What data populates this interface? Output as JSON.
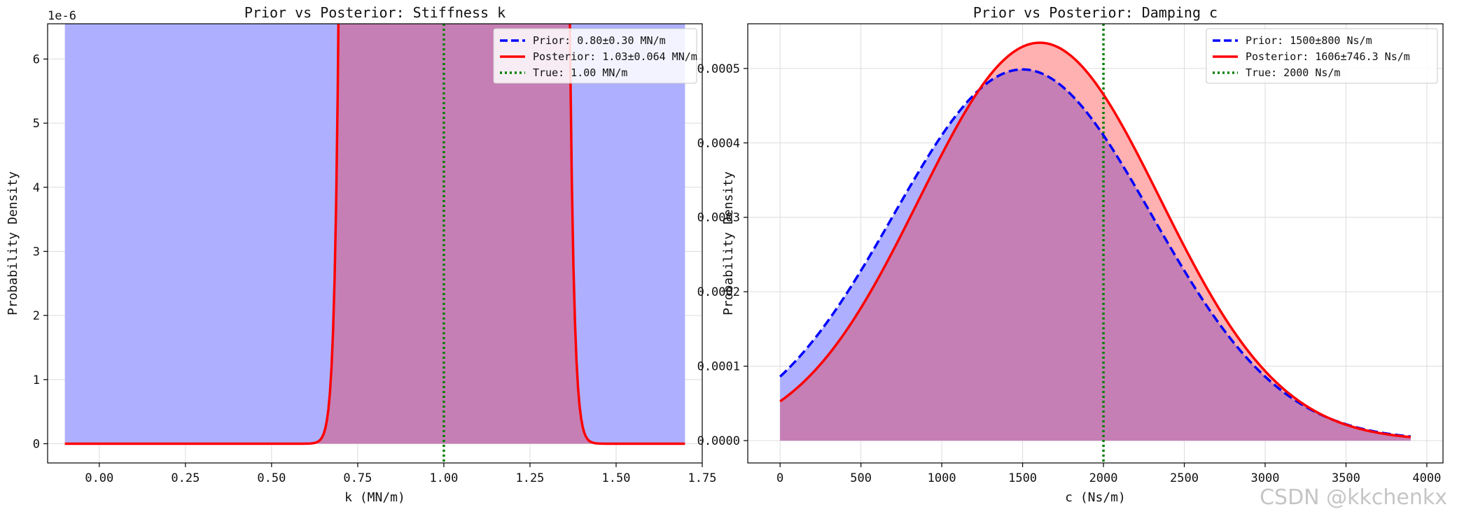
{
  "watermark": "CSDN @kkchenkx",
  "colors": {
    "prior": "#0000ff",
    "posterior": "#ff0000",
    "true_line": "#008000",
    "prior_fill": "#aeb0ff",
    "posterior_fill": "#ffb0b0",
    "overlap_fill": "#c57fb4",
    "grid": "#dcdcdc"
  },
  "chart_data": [
    {
      "type": "line",
      "title": "Prior vs Posterior: Stiffness k",
      "xlabel": "k (MN/m)",
      "ylabel": "Probability Density",
      "offset_label": "1e-6",
      "xlim": [
        -0.15,
        1.75
      ],
      "ylim": [
        -0.3,
        6.55
      ],
      "xticks": [
        0.0,
        0.25,
        0.5,
        0.75,
        1.0,
        1.25,
        1.5,
        1.75
      ],
      "xtick_labels": [
        "0.00",
        "0.25",
        "0.50",
        "0.75",
        "1.00",
        "1.25",
        "1.50",
        "1.75"
      ],
      "yticks": [
        0,
        1,
        2,
        3,
        4,
        5,
        6
      ],
      "ytick_labels": [
        "0",
        "1",
        "2",
        "3",
        "4",
        "5",
        "6"
      ],
      "x_range": [
        -0.1,
        1.7
      ],
      "series": [
        {
          "name": "Prior: 0.80±0.30 MN/m",
          "dist": "normal",
          "mean": 0.8,
          "std": 0.3,
          "style": "dashed"
        },
        {
          "name": "Posterior: 1.03±0.064 MN/m",
          "dist": "normal",
          "mean": 1.03,
          "std": 0.064,
          "style": "solid"
        }
      ],
      "true_value": {
        "label": "True: 1.00 MN/m",
        "x": 1.0
      },
      "legend": "top-right",
      "grid": true
    },
    {
      "type": "line",
      "title": "Prior vs Posterior: Damping c",
      "xlabel": "c (Ns/m)",
      "ylabel": "Probability Density",
      "offset_label": "",
      "xlim": [
        -200,
        4100
      ],
      "ylim": [
        -3e-05,
        0.00056
      ],
      "xticks": [
        0,
        500,
        1000,
        1500,
        2000,
        2500,
        3000,
        3500,
        4000
      ],
      "xtick_labels": [
        "0",
        "500",
        "1000",
        "1500",
        "2000",
        "2500",
        "3000",
        "3500",
        "4000"
      ],
      "yticks": [
        0,
        0.0001,
        0.0002,
        0.0003,
        0.0004,
        0.0005
      ],
      "ytick_labels": [
        "0.0000",
        "0.0001",
        "0.0002",
        "0.0003",
        "0.0004",
        "0.0005"
      ],
      "x_range": [
        0,
        3900
      ],
      "series": [
        {
          "name": "Prior: 1500±800 Ns/m",
          "dist": "normal",
          "mean": 1500,
          "std": 800,
          "style": "dashed"
        },
        {
          "name": "Posterior: 1606±746.3 Ns/m",
          "dist": "normal",
          "mean": 1606,
          "std": 746.3,
          "style": "solid"
        }
      ],
      "true_value": {
        "label": "True: 2000 Ns/m",
        "x": 2000
      },
      "legend": "top-right",
      "grid": true
    }
  ]
}
